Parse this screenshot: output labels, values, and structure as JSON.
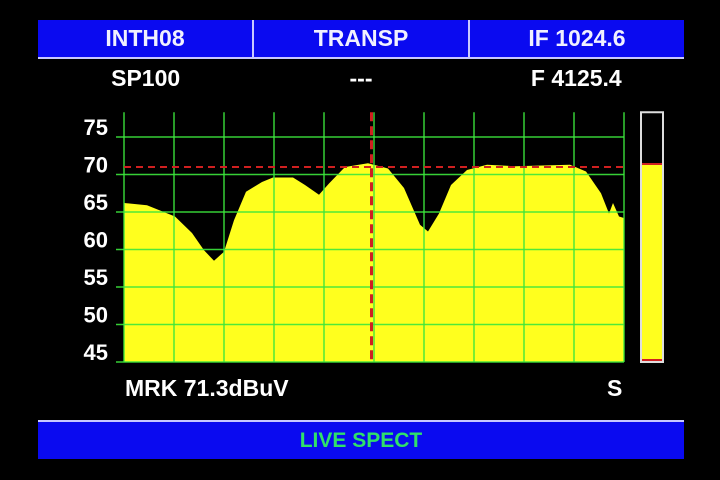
{
  "header": {
    "mode": "INTH08",
    "type": "TRANSP",
    "if_freq": "IF 1024.6"
  },
  "subheader": {
    "span": "SP100",
    "center": "---",
    "freq": "F 4125.4"
  },
  "marker": {
    "label": "MRK 71.3dBuV",
    "flag": "S"
  },
  "footer": {
    "label": "LIVE SPECT"
  },
  "colors": {
    "bar": "#0a0af0",
    "spectrum": "#ffff1e",
    "grid": "#3ce63c",
    "marker": "#d02020",
    "footer_text": "#2fe06a"
  },
  "chart_data": {
    "type": "area",
    "title": "",
    "xlabel": "",
    "ylabel": "",
    "ylim": [
      45,
      78.3
    ],
    "xlim": [
      0,
      100
    ],
    "yticks": [
      "75",
      "70",
      "65",
      "60",
      "55",
      "50",
      "45"
    ],
    "grid": true,
    "reference_level": 71.0,
    "marker_x": 49.5,
    "level_meter": 71.4,
    "x": [
      0,
      4.6,
      10.2,
      13.6,
      16,
      18,
      20,
      22,
      24.4,
      27.6,
      29.8,
      33.8,
      36.2,
      39,
      41,
      44.2,
      48.8,
      52.8,
      56,
      59.2,
      60.8,
      63,
      65.4,
      68.6,
      72.6,
      78.2,
      89.2,
      92.4,
      95.4,
      97,
      97.8,
      99,
      100
    ],
    "y": [
      66.2,
      65.9,
      64.4,
      62.2,
      59.9,
      58.5,
      59.7,
      63.9,
      67.7,
      69.0,
      69.6,
      69.6,
      68.6,
      67.3,
      68.8,
      71.0,
      71.5,
      70.8,
      68.2,
      63.3,
      62.4,
      64.8,
      68.6,
      70.6,
      71.3,
      71.1,
      71.3,
      70.4,
      67.5,
      64.8,
      66.2,
      64.4,
      64.2
    ]
  }
}
